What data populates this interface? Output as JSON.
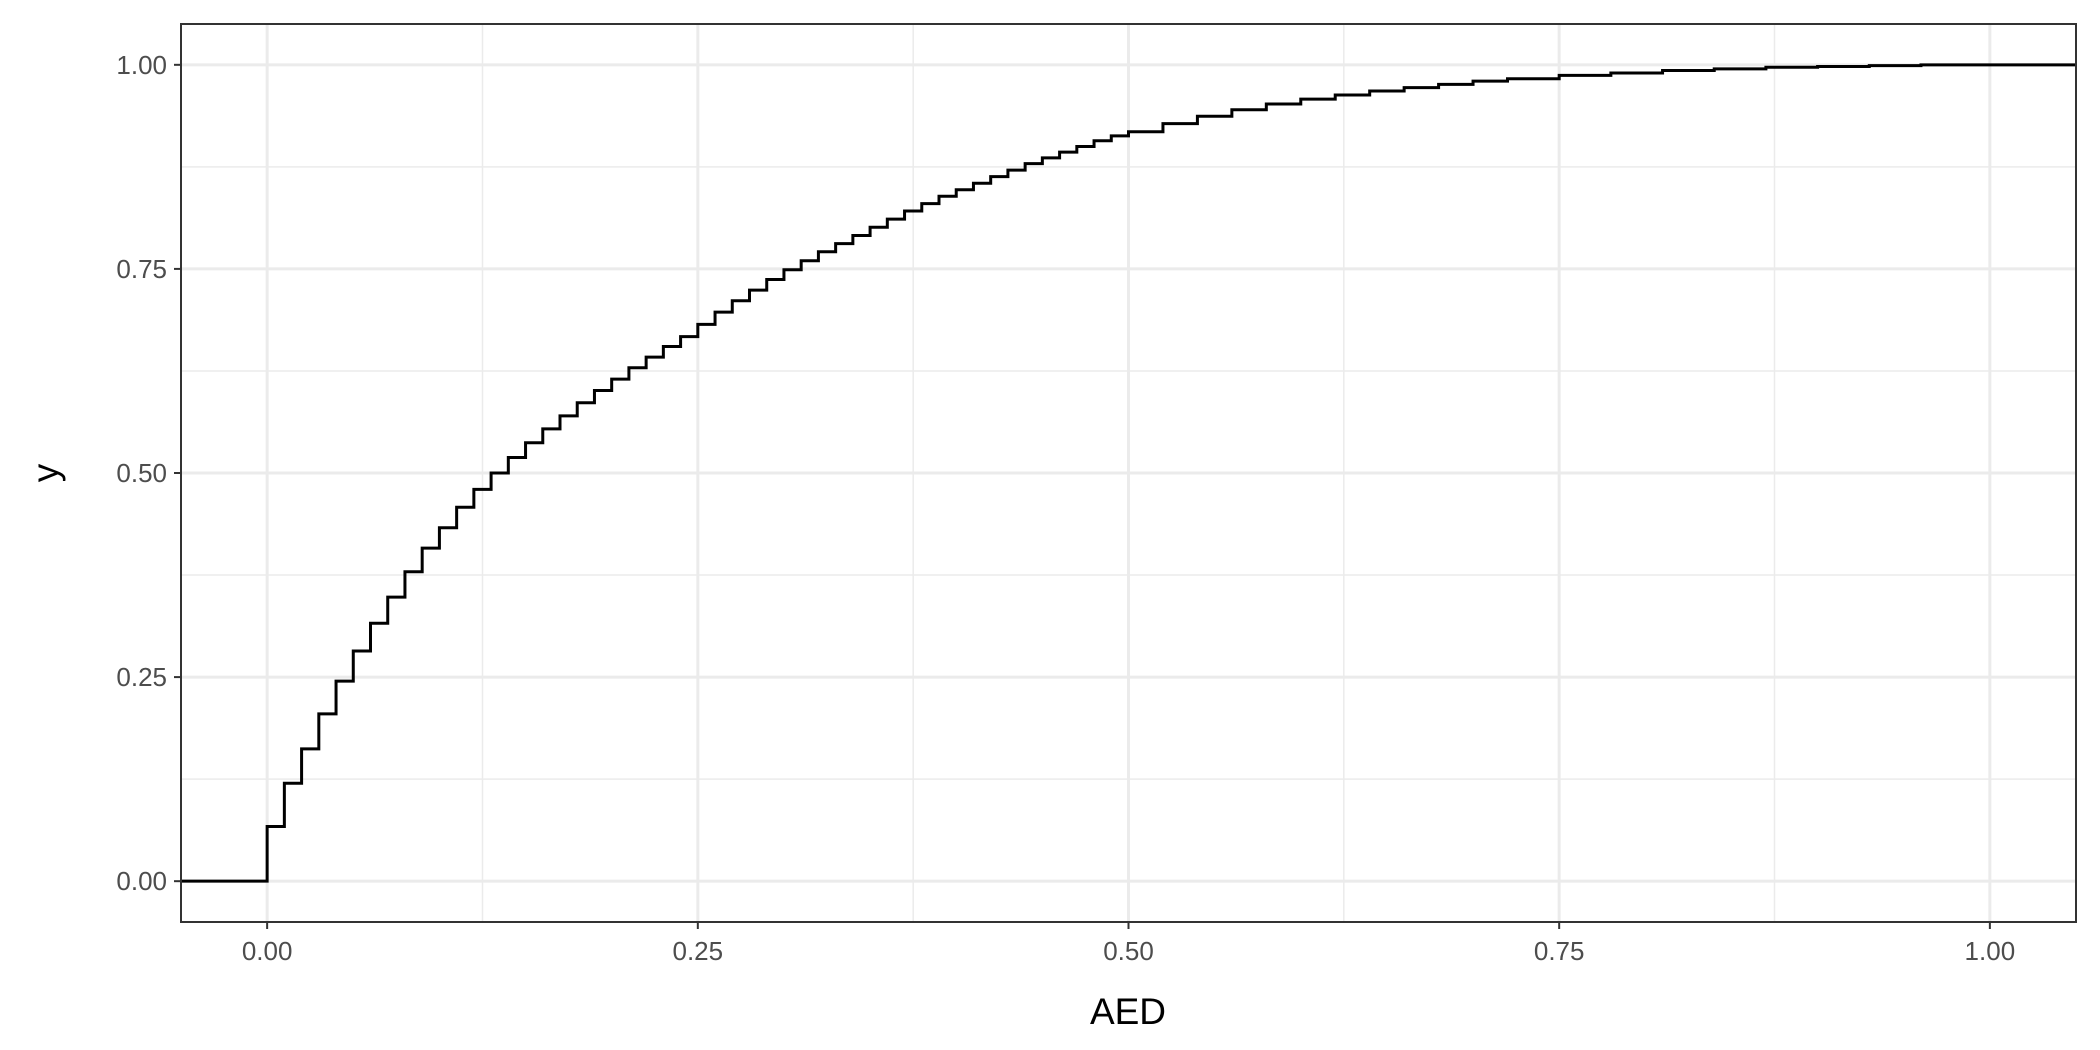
{
  "chart_data": {
    "type": "line",
    "step": true,
    "title": "",
    "xlabel": "AED",
    "ylabel": "y",
    "xlim": [
      -0.05,
      1.05
    ],
    "ylim": [
      -0.05,
      1.05
    ],
    "x_ticks": [
      0,
      0.25,
      0.5,
      0.75,
      1.0
    ],
    "x_tick_labels": [
      "0.00",
      "0.25",
      "0.50",
      "0.75",
      "1.00"
    ],
    "y_ticks": [
      0,
      0.25,
      0.5,
      0.75,
      1.0
    ],
    "y_tick_labels": [
      "0.00",
      "0.25",
      "0.50",
      "0.75",
      "1.00"
    ],
    "grid": true,
    "legend": "none",
    "colors": {
      "line": "#000000",
      "grid": "#ebebeb",
      "panel_border": "#333333"
    },
    "series": [
      {
        "x": [
          -0.05,
          0.0,
          0.01,
          0.02,
          0.03,
          0.04,
          0.05,
          0.06,
          0.07,
          0.08,
          0.09,
          0.1,
          0.11,
          0.12,
          0.13,
          0.14,
          0.15,
          0.16,
          0.17,
          0.18,
          0.19,
          0.2,
          0.21,
          0.22,
          0.23,
          0.24,
          0.25,
          0.26,
          0.27,
          0.28,
          0.29,
          0.3,
          0.31,
          0.32,
          0.33,
          0.34,
          0.35,
          0.36,
          0.37,
          0.38,
          0.39,
          0.4,
          0.41,
          0.42,
          0.43,
          0.44,
          0.45,
          0.46,
          0.47,
          0.48,
          0.49,
          0.5,
          0.52,
          0.54,
          0.56,
          0.58,
          0.6,
          0.62,
          0.64,
          0.66,
          0.68,
          0.7,
          0.72,
          0.75,
          0.78,
          0.81,
          0.84,
          0.87,
          0.9,
          0.93,
          0.96,
          1.0,
          1.05
        ],
        "y": [
          0.0,
          0.067,
          0.12,
          0.162,
          0.205,
          0.245,
          0.282,
          0.316,
          0.348,
          0.379,
          0.408,
          0.433,
          0.458,
          0.48,
          0.5,
          0.519,
          0.537,
          0.554,
          0.57,
          0.586,
          0.601,
          0.615,
          0.629,
          0.642,
          0.655,
          0.667,
          0.682,
          0.697,
          0.711,
          0.724,
          0.737,
          0.749,
          0.76,
          0.771,
          0.781,
          0.791,
          0.801,
          0.811,
          0.821,
          0.83,
          0.839,
          0.847,
          0.855,
          0.863,
          0.871,
          0.879,
          0.886,
          0.893,
          0.9,
          0.907,
          0.913,
          0.918,
          0.928,
          0.937,
          0.945,
          0.952,
          0.958,
          0.963,
          0.968,
          0.972,
          0.976,
          0.98,
          0.983,
          0.987,
          0.99,
          0.993,
          0.995,
          0.997,
          0.998,
          0.999,
          1.0,
          1.0,
          1.0
        ]
      }
    ]
  }
}
